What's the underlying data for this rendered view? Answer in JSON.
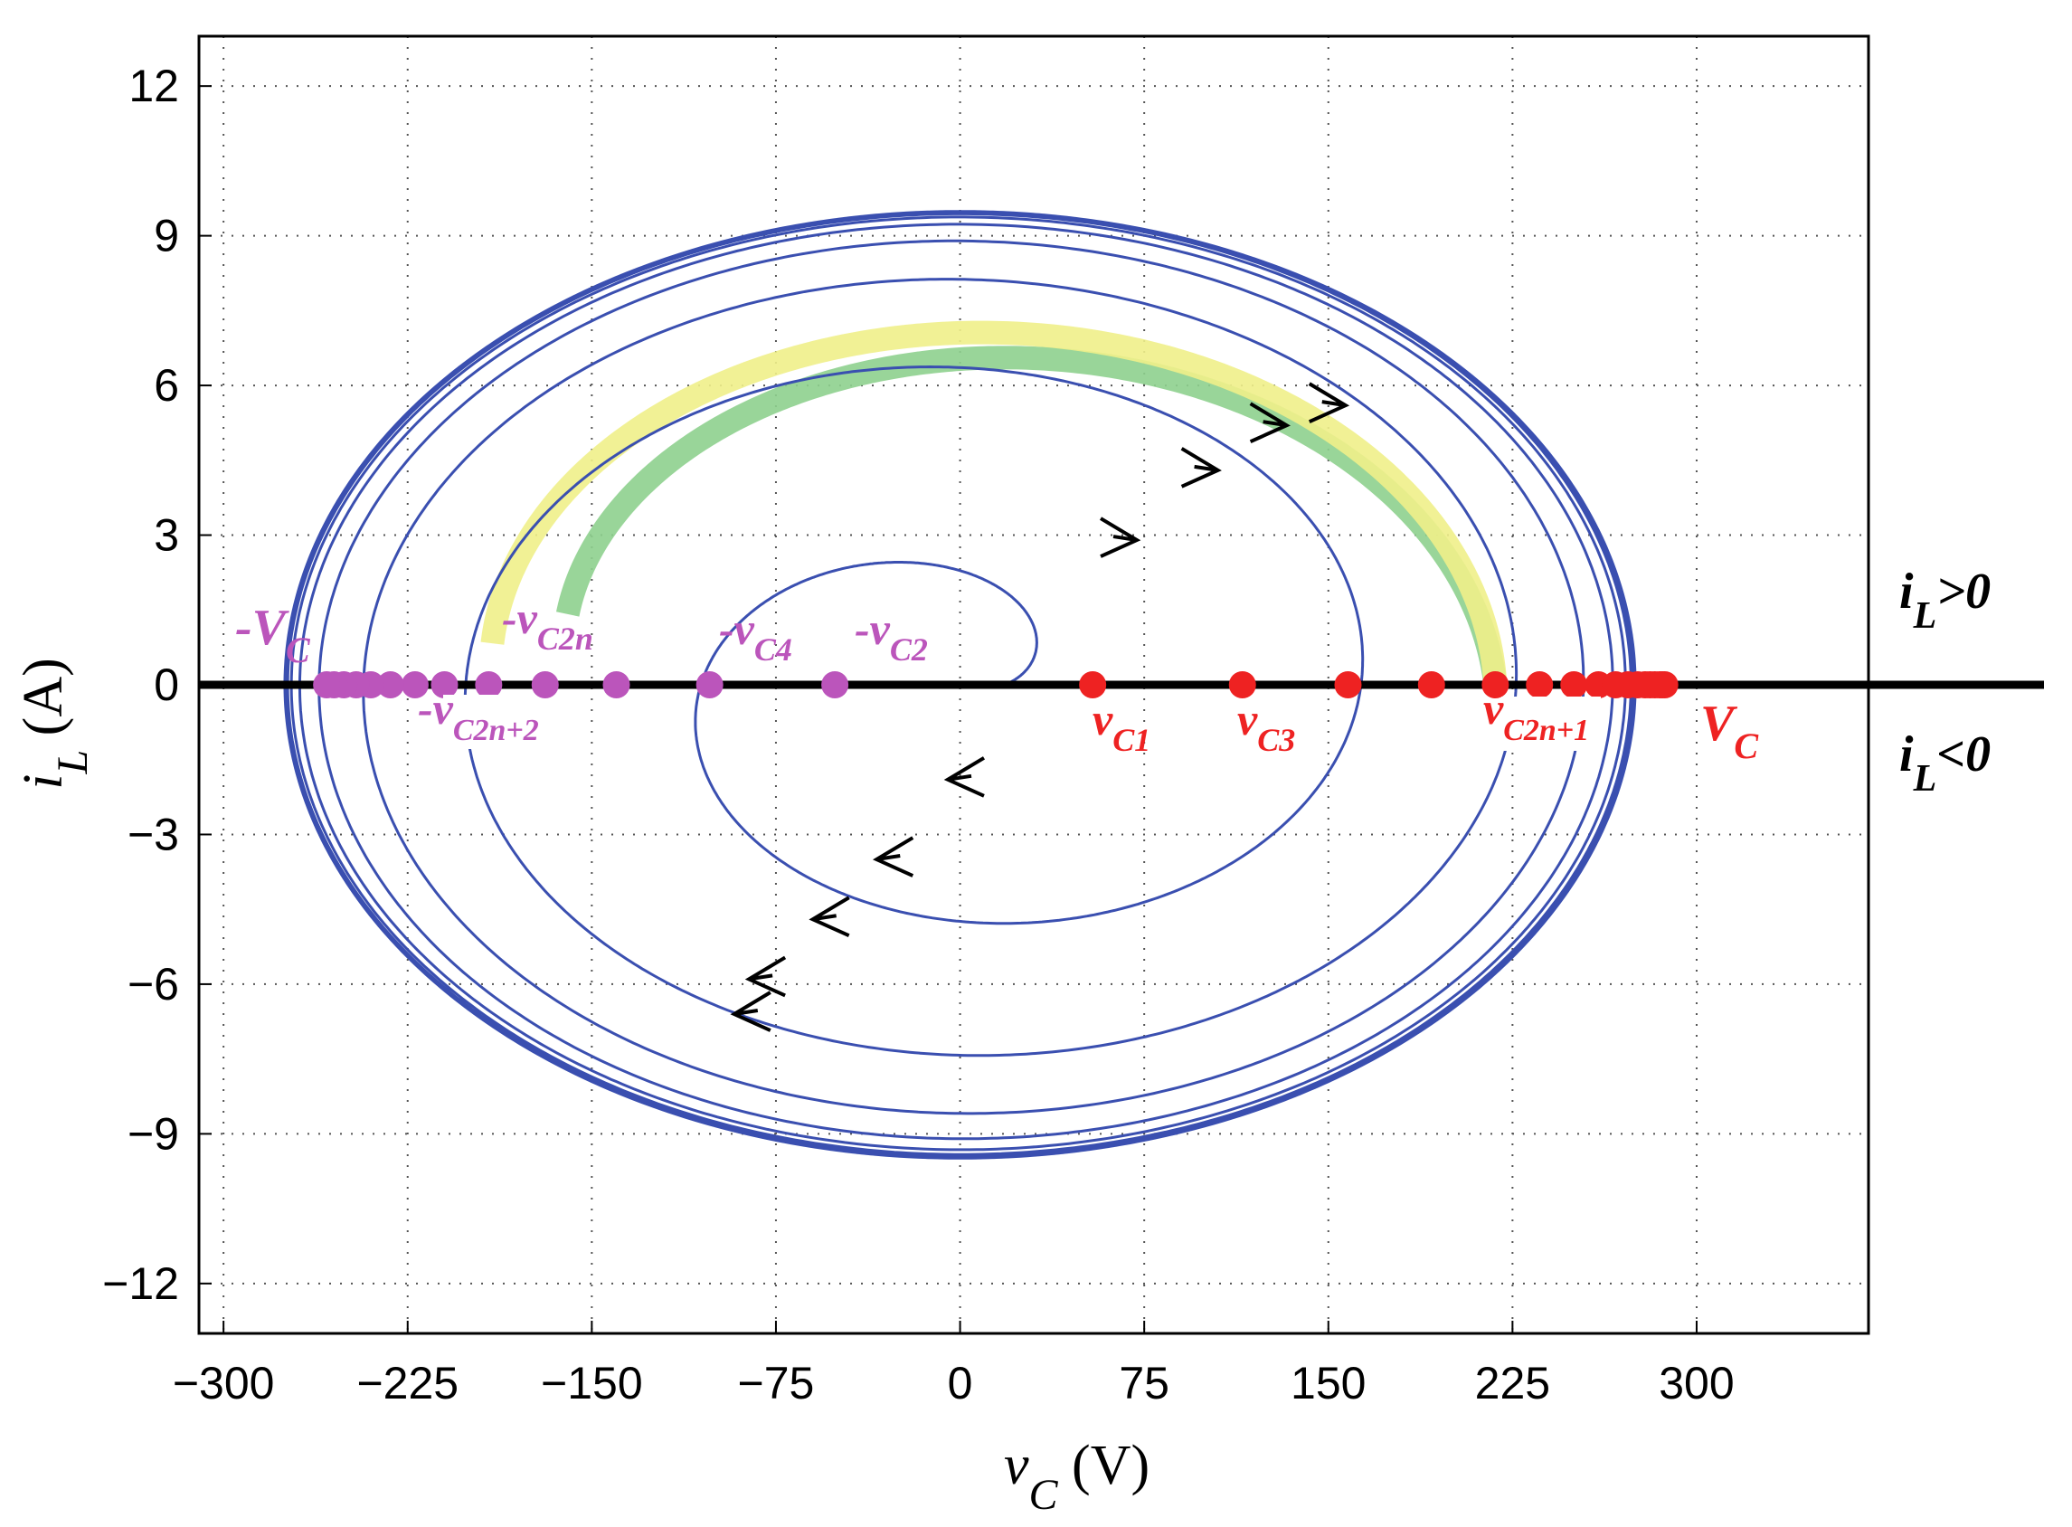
{
  "chart_data": {
    "type": "line",
    "title": "",
    "xlabel": {
      "main": "v",
      "sub": "C",
      "unit": " (V)"
    },
    "ylabel": {
      "main": "i",
      "sub": "L",
      "unit": " (A)"
    },
    "xlim": [
      -310,
      370
    ],
    "ylim": [
      -13,
      13
    ],
    "x_ticks": [
      -300,
      -225,
      -150,
      -75,
      0,
      75,
      150,
      225,
      300
    ],
    "y_ticks": [
      12,
      9,
      6,
      3,
      0,
      -3,
      -6,
      -9,
      -12
    ],
    "x_tick_labels": [
      "−300",
      "−225",
      "−150",
      "−75",
      "0",
      "75",
      "150",
      "225",
      "300"
    ],
    "y_tick_labels": [
      "12",
      "9",
      "6",
      "3",
      "0",
      "−3",
      "−6",
      "−9",
      "−12"
    ],
    "grid": true,
    "colors": {
      "trajectory": "#3a4fb0",
      "zero_line": "#000000",
      "positive_points": "#ee2222",
      "negative_points": "#bb55bb",
      "highlight_upper": "#8ed08e",
      "highlight_lower": "#f0f08a",
      "arrow": "#000000"
    },
    "spiral": {
      "start_x": 18,
      "center_x": 0,
      "current_to_voltage_ratio": 0.0345,
      "outer_x": 275,
      "cycles": 22
    },
    "positive_crossings": [
      54,
      115,
      158,
      192,
      218,
      236,
      250,
      260,
      267,
      272,
      276,
      279,
      281,
      283,
      285,
      286,
      287
    ],
    "negative_crossings": [
      -51,
      -102,
      -140,
      -169,
      -192,
      -210,
      -222,
      -232,
      -240,
      -246,
      -251,
      -255,
      -258
    ],
    "highlight_upper_range": [
      -165,
      218
    ],
    "highlight_lower_range": [
      -192,
      218
    ],
    "arrows_upper": [
      [
        72,
        2.9
      ],
      [
        105,
        4.3
      ],
      [
        133,
        5.2
      ],
      [
        157,
        5.6
      ]
    ],
    "arrows_lower": [
      [
        -5,
        -1.9
      ],
      [
        -34,
        -3.5
      ],
      [
        -60,
        -4.7
      ],
      [
        -86,
        -5.9
      ],
      [
        -92,
        -6.6
      ]
    ],
    "annotations": {
      "neg_Vc": {
        "main": "-V",
        "sub": "C"
      },
      "neg_v2n": {
        "main": "-v",
        "sub": "C2n"
      },
      "neg_v4": {
        "main": "-v",
        "sub": "C4"
      },
      "neg_v2": {
        "main": "-v",
        "sub": "C2"
      },
      "neg_v2n2": {
        "main": "-v",
        "sub": "C2n+2"
      },
      "v1": {
        "main": "v",
        "sub": "C1"
      },
      "v3": {
        "main": "v",
        "sub": "C3"
      },
      "v2n1": {
        "main": "v",
        "sub": "C2n+1"
      },
      "Vc": {
        "main": "V",
        "sub": "C"
      },
      "il_pos": {
        "main": "i",
        "sub": "L",
        "tail": ">0"
      },
      "il_neg": {
        "main": "i",
        "sub": "L",
        "tail": "<0"
      }
    }
  }
}
